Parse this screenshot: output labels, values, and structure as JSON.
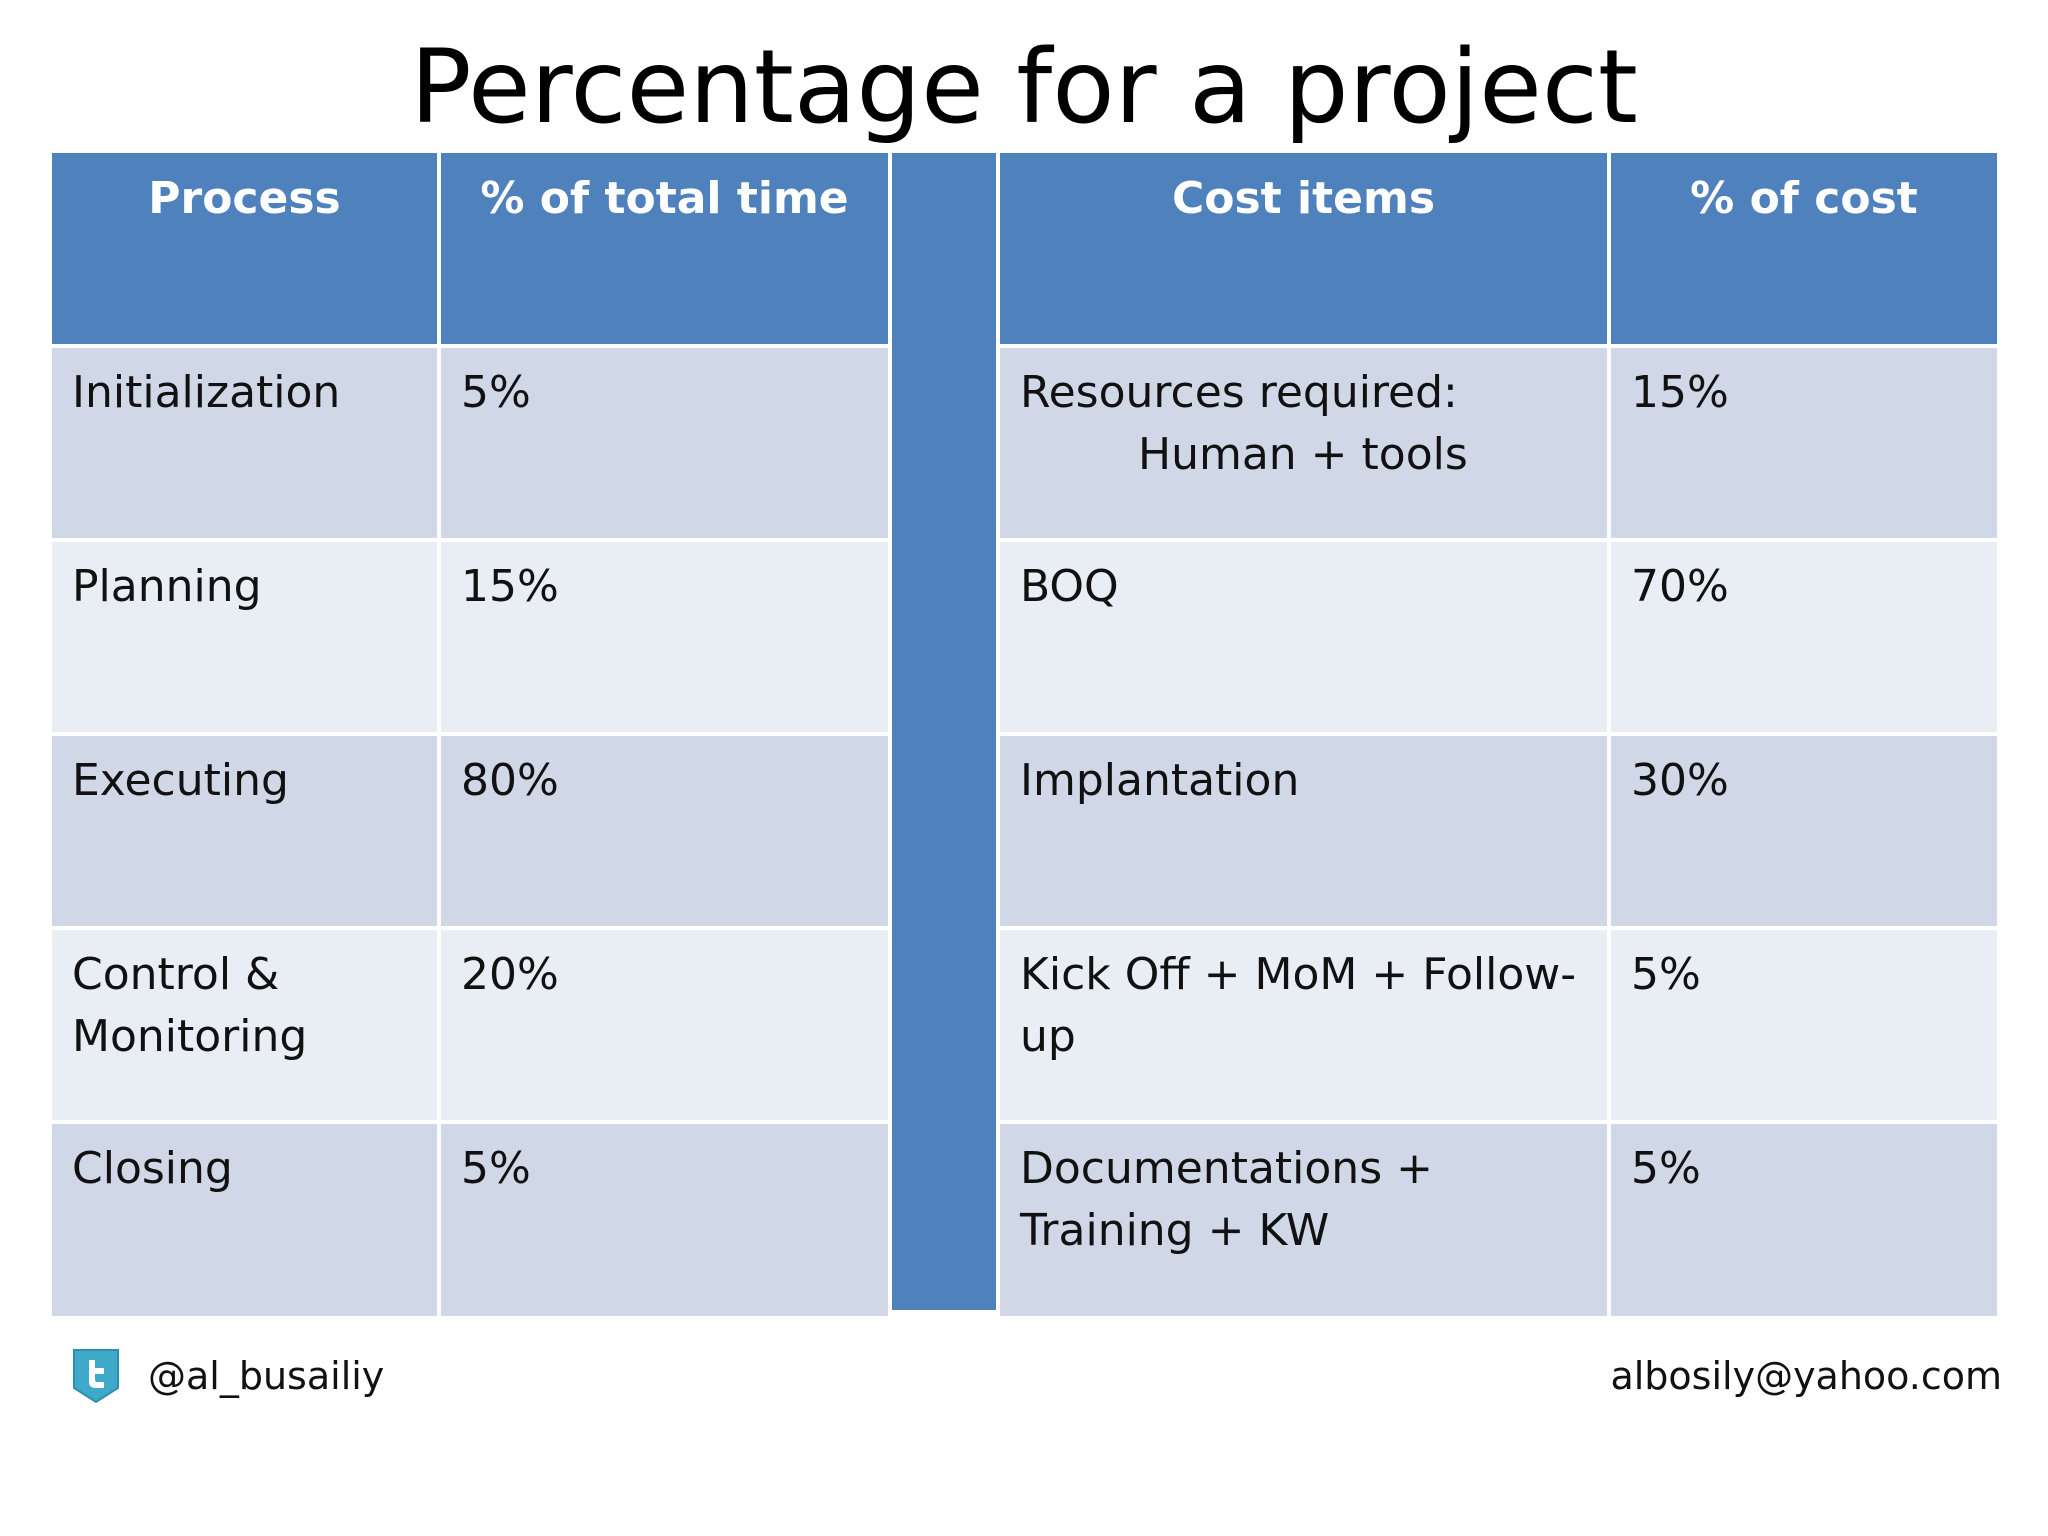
{
  "title": "Percentage for a project",
  "time_table": {
    "headers": [
      "Process",
      "% of total time"
    ],
    "rows": [
      {
        "process": "Initialization",
        "percent": "5%"
      },
      {
        "process": "Planning",
        "percent": "15%"
      },
      {
        "process": "Executing",
        "percent": "80%"
      },
      {
        "process": "Control & Monitoring",
        "percent": "20%"
      },
      {
        "process": "Closing",
        "percent": "5%"
      }
    ]
  },
  "cost_table": {
    "headers": [
      "Cost items",
      "% of cost"
    ],
    "rows": [
      {
        "item": "Resources required:",
        "item_sub": "Human + tools",
        "percent": "15%"
      },
      {
        "item": "BOQ",
        "percent": "70%"
      },
      {
        "item": "Implantation",
        "percent": "30%"
      },
      {
        "item": "Kick Off + MoM + Follow-up",
        "percent": "5%"
      },
      {
        "item": "Documentations + Training + KW",
        "percent": "5%"
      }
    ]
  },
  "footer": {
    "icon": "twitter-icon",
    "handle": "@al_busailiy",
    "email": "albosily@yahoo.com"
  },
  "colors": {
    "header": "#4f81bd",
    "row_odd": "#d0d8e8",
    "row_even": "#e9edf4",
    "icon": "#3fa9c9"
  }
}
